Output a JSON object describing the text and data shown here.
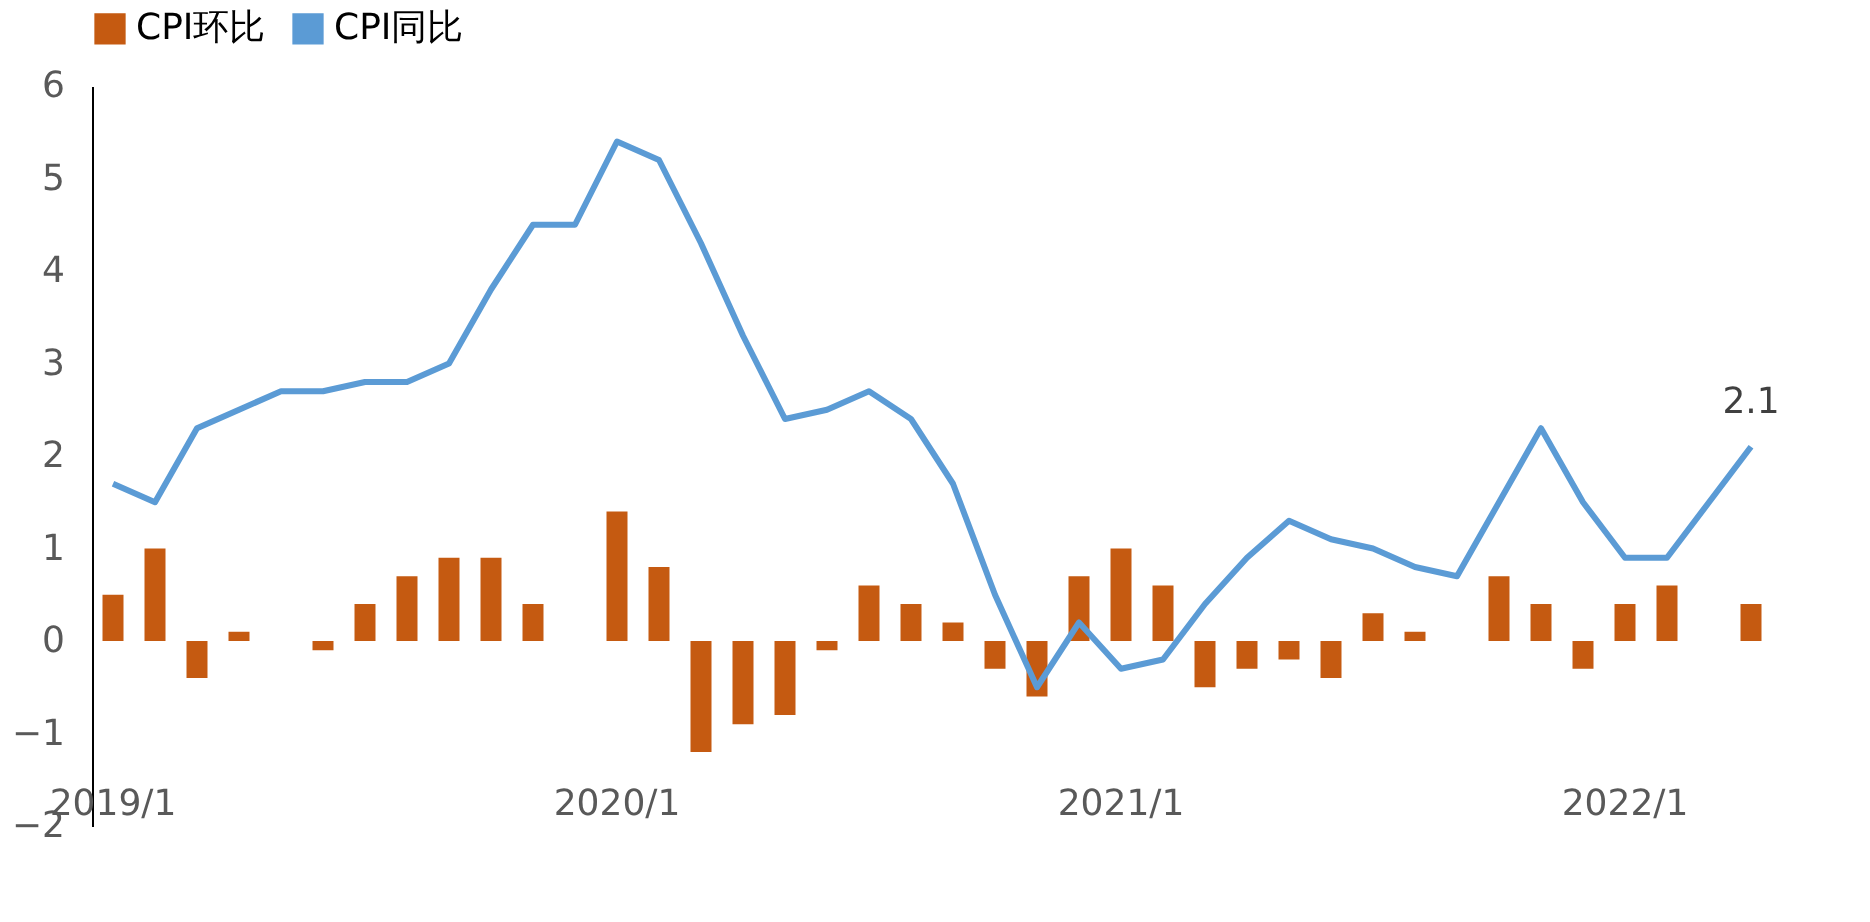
{
  "chart_data": {
    "type": "bar",
    "categories": [
      "2019/1",
      null,
      null,
      null,
      null,
      null,
      null,
      null,
      null,
      null,
      null,
      null,
      "2020/1",
      null,
      null,
      null,
      null,
      null,
      null,
      null,
      null,
      null,
      null,
      null,
      "2021/1",
      null,
      null,
      null,
      null,
      null,
      null,
      null,
      null,
      null,
      null,
      null,
      "2022/1",
      null,
      null,
      null
    ],
    "series": [
      {
        "name": "CPI环比",
        "color": "#c55a11",
        "values": [
          0.5,
          1.0,
          -0.4,
          0.1,
          0.0,
          -0.1,
          0.4,
          0.7,
          0.9,
          0.9,
          0.4,
          0.0,
          1.4,
          0.8,
          -1.2,
          -0.9,
          -0.8,
          -0.1,
          0.6,
          0.4,
          0.2,
          -0.3,
          -0.6,
          0.7,
          1.0,
          0.6,
          -0.5,
          -0.3,
          -0.2,
          -0.4,
          0.3,
          0.1,
          0.0,
          0.7,
          0.4,
          -0.3,
          0.4,
          0.6,
          0.0,
          0.4
        ]
      },
      {
        "name": "CPI同比",
        "type": "line",
        "color": "#5b9bd5",
        "values": [
          1.7,
          1.5,
          2.3,
          2.5,
          2.7,
          2.7,
          2.8,
          2.8,
          3.0,
          3.8,
          4.5,
          4.5,
          5.4,
          5.2,
          4.3,
          3.3,
          2.4,
          2.5,
          2.7,
          2.4,
          1.7,
          0.5,
          -0.5,
          0.2,
          -0.3,
          -0.2,
          0.4,
          0.9,
          1.3,
          1.1,
          1.0,
          0.8,
          0.7,
          1.5,
          2.3,
          1.5,
          0.9,
          0.9,
          1.5,
          2.1
        ]
      }
    ],
    "ylim": [
      -2,
      6
    ],
    "yticks": [
      -2,
      -1,
      0,
      1,
      2,
      3,
      4,
      5,
      6
    ],
    "grid": false,
    "legend": "top",
    "annotations": [
      {
        "text": "2.1",
        "y": 2.1
      }
    ]
  }
}
